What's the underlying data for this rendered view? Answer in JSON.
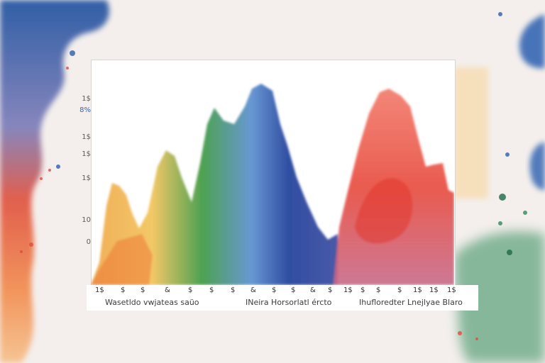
{
  "colors": {
    "orange": "#f0a25a",
    "yellow": "#f2c14e",
    "green": "#2f8a3c",
    "blue": "#1f3f9a",
    "red": "#e34a3b",
    "background": "#f4efec"
  },
  "y_tick_labels": [
    "1$",
    "8%",
    "1$",
    "1$",
    "1$",
    "10",
    "0"
  ],
  "x_tick_labels": [
    "1$",
    "$",
    "$",
    "&",
    "$",
    "$",
    "$",
    "&",
    "$",
    "$",
    "&",
    "$",
    "1$",
    "$",
    "$",
    "$",
    "1$",
    "1$",
    "1$"
  ],
  "captions": [
    "Wasetldo vwjateas saüo",
    "INeira Horsorlatl ércto",
    "Ihufloredter Lnejlyae Blaro"
  ]
}
